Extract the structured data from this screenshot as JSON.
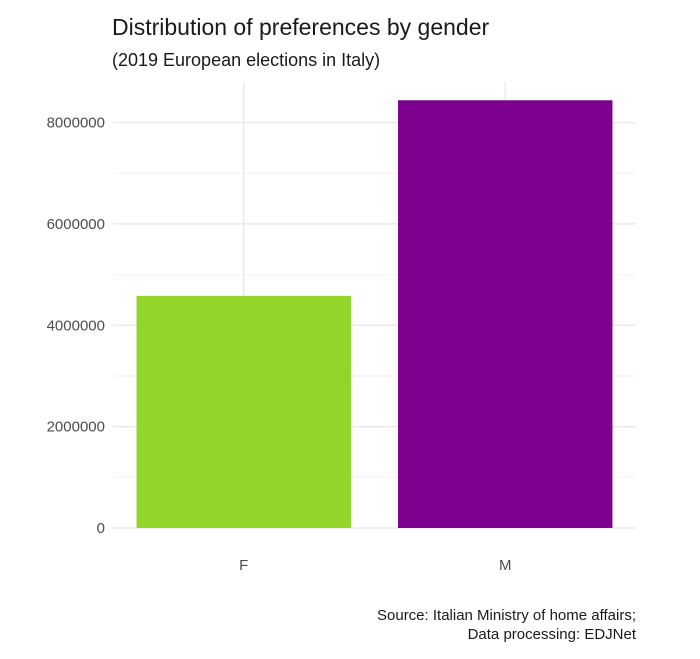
{
  "chart_data": {
    "type": "bar",
    "title": "Distribution of preferences by gender",
    "subtitle": "(2019 European elections in Italy)",
    "xlabel": "",
    "ylabel": "",
    "categories": [
      "F",
      "M"
    ],
    "values": [
      4580000,
      8440000
    ],
    "colors": [
      "#94d52a",
      "#7d008e"
    ],
    "ylim": [
      0,
      8800000
    ],
    "yticks": [
      0,
      2000000,
      4000000,
      6000000,
      8000000
    ],
    "ytick_labels": [
      "0",
      "2000000",
      "4000000",
      "6000000",
      "8000000"
    ],
    "grid": true,
    "legend": "none"
  },
  "caption": {
    "line1": "Source: Italian Ministry of home affairs;",
    "line2": "Data processing: EDJNet"
  }
}
